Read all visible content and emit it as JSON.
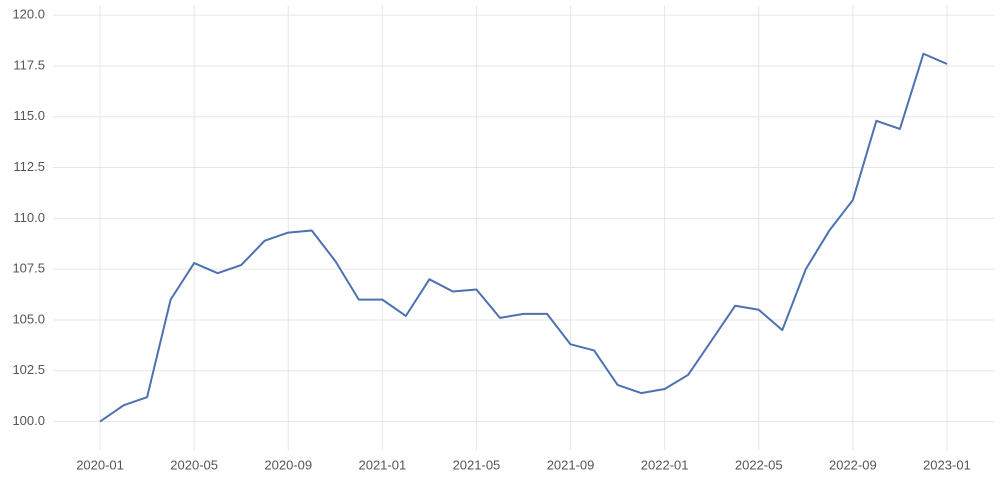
{
  "chart_data": {
    "type": "line",
    "x": [
      "2020-01",
      "2020-02",
      "2020-03",
      "2020-04",
      "2020-05",
      "2020-06",
      "2020-07",
      "2020-08",
      "2020-09",
      "2020-10",
      "2020-11",
      "2020-12",
      "2021-01",
      "2021-02",
      "2021-03",
      "2021-04",
      "2021-05",
      "2021-06",
      "2021-07",
      "2021-08",
      "2021-09",
      "2021-10",
      "2021-11",
      "2021-12",
      "2022-01",
      "2022-02",
      "2022-03",
      "2022-04",
      "2022-05",
      "2022-06",
      "2022-07",
      "2022-08",
      "2022-09",
      "2022-10",
      "2022-11",
      "2022-12",
      "2023-01"
    ],
    "series": [
      {
        "color": "#4c72b0",
        "values": [
          100.0,
          100.8,
          101.2,
          106.0,
          107.8,
          107.3,
          107.7,
          108.9,
          109.3,
          109.4,
          107.9,
          106.0,
          106.0,
          105.2,
          107.0,
          106.4,
          106.5,
          105.1,
          105.3,
          105.3,
          103.8,
          103.5,
          101.8,
          101.4,
          101.6,
          102.3,
          104.0,
          105.7,
          105.5,
          104.5,
          107.5,
          109.4,
          110.9,
          114.8,
          114.4,
          118.1,
          117.6
        ]
      }
    ],
    "xlim": [
      "2019-11",
      "2023-03"
    ],
    "xticks": [
      "2020-01",
      "2020-05",
      "2020-09",
      "2021-01",
      "2021-05",
      "2021-09",
      "2022-01",
      "2022-05",
      "2022-09",
      "2023-01"
    ],
    "ylim": [
      98.6,
      120.5
    ],
    "yticks": [
      {
        "value": 100,
        "label": "100.0"
      },
      {
        "value": 102.5,
        "label": "102.5"
      },
      {
        "value": 105,
        "label": "105.0"
      },
      {
        "value": 107.5,
        "label": "107.5"
      },
      {
        "value": 110,
        "label": "110.0"
      },
      {
        "value": 112.5,
        "label": "112.5"
      },
      {
        "value": 115,
        "label": "115.0"
      },
      {
        "value": 117.5,
        "label": "117.5"
      },
      {
        "value": 120,
        "label": "120.0"
      }
    ],
    "grid": true
  }
}
